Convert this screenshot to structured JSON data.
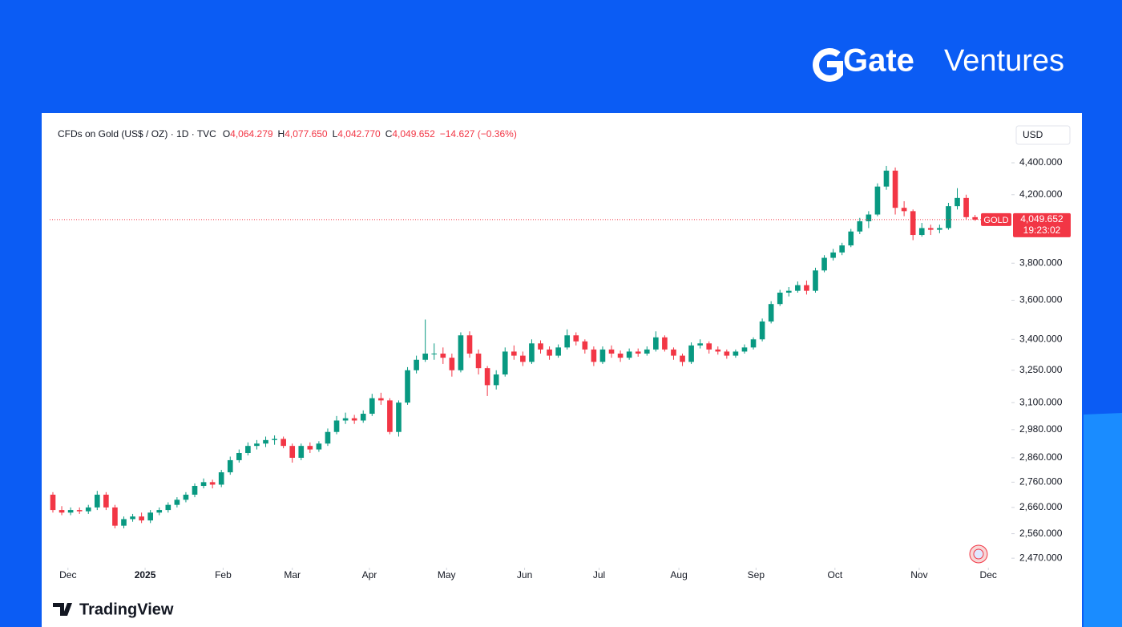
{
  "brand": "Gate",
  "brand_suffix": "Ventures",
  "footer_logo": "TradingView",
  "chart_data": {
    "type": "candlestick",
    "title": "CFDs on Gold (US$ / OZ) · 1D · TVC",
    "ohlc_labels": [
      {
        "key": "O",
        "value": "4,064.279"
      },
      {
        "key": "H",
        "value": "4,077.650"
      },
      {
        "key": "L",
        "value": "4,042.770"
      },
      {
        "key": "C",
        "value": "4,049.652"
      }
    ],
    "change_label": "−14.627 (−0.36%)",
    "currency": "USD",
    "symbol": "GOLD",
    "last_price_label": "4,049.652",
    "countdown": "19:23:02",
    "up_color": "#089981",
    "down_color": "#f23645",
    "log_scale": true,
    "ylim": [
      2436,
      4494
    ],
    "yticks": [
      {
        "value": 4400,
        "label": "4,400.000"
      },
      {
        "value": 4200,
        "label": "4,200.000"
      },
      {
        "value": 3800,
        "label": "3,800.000"
      },
      {
        "value": 3600,
        "label": "3,600.000"
      },
      {
        "value": 3400,
        "label": "3,400.000"
      },
      {
        "value": 3250,
        "label": "3,250.000"
      },
      {
        "value": 3100,
        "label": "3,100.000"
      },
      {
        "value": 2980,
        "label": "2,980.000"
      },
      {
        "value": 2860,
        "label": "2,860.000"
      },
      {
        "value": 2760,
        "label": "2,760.000"
      },
      {
        "value": 2660,
        "label": "2,660.000"
      },
      {
        "value": 2560,
        "label": "2,560.000"
      },
      {
        "value": 2470,
        "label": "2,470.000"
      }
    ],
    "xlim": [
      -0.36,
      108.1
    ],
    "xticks": [
      {
        "value": 1.7,
        "label": "Dec"
      },
      {
        "value": 10.4,
        "label": "2025"
      },
      {
        "value": 19.2,
        "label": "Feb"
      },
      {
        "value": 27,
        "label": "Mar"
      },
      {
        "value": 35.7,
        "label": "Apr"
      },
      {
        "value": 44.4,
        "label": "May"
      },
      {
        "value": 53.2,
        "label": "Jun"
      },
      {
        "value": 61.6,
        "label": "Jul"
      },
      {
        "value": 70.6,
        "label": "Aug"
      },
      {
        "value": 79.3,
        "label": "Sep"
      },
      {
        "value": 88.2,
        "label": "Oct"
      },
      {
        "value": 97.7,
        "label": "Nov"
      },
      {
        "value": 105.5,
        "label": "Dec"
      }
    ],
    "candles": [
      [
        2710,
        2720,
        2640,
        2650
      ],
      [
        2650,
        2665,
        2630,
        2640
      ],
      [
        2640,
        2660,
        2630,
        2650
      ],
      [
        2650,
        2660,
        2635,
        2645
      ],
      [
        2645,
        2670,
        2635,
        2660
      ],
      [
        2660,
        2725,
        2650,
        2710
      ],
      [
        2710,
        2720,
        2650,
        2660
      ],
      [
        2660,
        2670,
        2580,
        2590
      ],
      [
        2590,
        2625,
        2580,
        2615
      ],
      [
        2615,
        2635,
        2605,
        2625
      ],
      [
        2625,
        2640,
        2600,
        2610
      ],
      [
        2610,
        2650,
        2600,
        2640
      ],
      [
        2640,
        2660,
        2630,
        2650
      ],
      [
        2650,
        2680,
        2640,
        2670
      ],
      [
        2670,
        2700,
        2660,
        2690
      ],
      [
        2690,
        2720,
        2680,
        2710
      ],
      [
        2710,
        2755,
        2700,
        2745
      ],
      [
        2745,
        2775,
        2735,
        2760
      ],
      [
        2760,
        2770,
        2735,
        2750
      ],
      [
        2750,
        2810,
        2740,
        2800
      ],
      [
        2800,
        2865,
        2790,
        2850
      ],
      [
        2850,
        2895,
        2840,
        2880
      ],
      [
        2880,
        2925,
        2870,
        2910
      ],
      [
        2910,
        2935,
        2895,
        2920
      ],
      [
        2920,
        2950,
        2905,
        2935
      ],
      [
        2935,
        2955,
        2915,
        2940
      ],
      [
        2940,
        2950,
        2900,
        2910
      ],
      [
        2910,
        2920,
        2840,
        2860
      ],
      [
        2860,
        2920,
        2850,
        2910
      ],
      [
        2910,
        2925,
        2880,
        2895
      ],
      [
        2895,
        2930,
        2885,
        2920
      ],
      [
        2920,
        2985,
        2910,
        2970
      ],
      [
        2970,
        3040,
        2960,
        3020
      ],
      [
        3020,
        3055,
        3005,
        3030
      ],
      [
        3030,
        3045,
        3005,
        3020
      ],
      [
        3020,
        3065,
        3010,
        3050
      ],
      [
        3050,
        3140,
        3040,
        3120
      ],
      [
        3120,
        3145,
        3090,
        3110
      ],
      [
        3110,
        3120,
        2960,
        2970
      ],
      [
        2970,
        3110,
        2950,
        3100
      ],
      [
        3100,
        3265,
        3090,
        3250
      ],
      [
        3250,
        3320,
        3235,
        3300
      ],
      [
        3300,
        3500,
        3290,
        3330
      ],
      [
        3330,
        3380,
        3300,
        3330
      ],
      [
        3330,
        3360,
        3280,
        3310
      ],
      [
        3310,
        3330,
        3220,
        3250
      ],
      [
        3250,
        3435,
        3240,
        3420
      ],
      [
        3420,
        3440,
        3310,
        3330
      ],
      [
        3330,
        3350,
        3230,
        3260
      ],
      [
        3260,
        3270,
        3130,
        3180
      ],
      [
        3180,
        3250,
        3160,
        3230
      ],
      [
        3230,
        3360,
        3220,
        3340
      ],
      [
        3340,
        3370,
        3300,
        3320
      ],
      [
        3320,
        3340,
        3270,
        3290
      ],
      [
        3290,
        3400,
        3280,
        3380
      ],
      [
        3380,
        3395,
        3330,
        3350
      ],
      [
        3350,
        3365,
        3300,
        3320
      ],
      [
        3320,
        3375,
        3310,
        3360
      ],
      [
        3360,
        3450,
        3350,
        3420
      ],
      [
        3420,
        3435,
        3370,
        3390
      ],
      [
        3390,
        3400,
        3330,
        3350
      ],
      [
        3350,
        3365,
        3270,
        3290
      ],
      [
        3290,
        3365,
        3280,
        3350
      ],
      [
        3350,
        3370,
        3310,
        3330
      ],
      [
        3330,
        3345,
        3290,
        3310
      ],
      [
        3310,
        3355,
        3300,
        3340
      ],
      [
        3340,
        3355,
        3315,
        3330
      ],
      [
        3330,
        3365,
        3320,
        3350
      ],
      [
        3350,
        3440,
        3340,
        3410
      ],
      [
        3410,
        3420,
        3340,
        3350
      ],
      [
        3350,
        3360,
        3300,
        3320
      ],
      [
        3320,
        3330,
        3270,
        3290
      ],
      [
        3290,
        3385,
        3280,
        3370
      ],
      [
        3370,
        3400,
        3355,
        3380
      ],
      [
        3380,
        3390,
        3330,
        3350
      ],
      [
        3350,
        3365,
        3325,
        3340
      ],
      [
        3340,
        3350,
        3305,
        3320
      ],
      [
        3320,
        3350,
        3310,
        3340
      ],
      [
        3340,
        3375,
        3330,
        3360
      ],
      [
        3360,
        3410,
        3350,
        3400
      ],
      [
        3400,
        3505,
        3390,
        3490
      ],
      [
        3490,
        3595,
        3480,
        3580
      ],
      [
        3580,
        3655,
        3570,
        3640
      ],
      [
        3640,
        3670,
        3620,
        3650
      ],
      [
        3650,
        3700,
        3640,
        3680
      ],
      [
        3680,
        3705,
        3630,
        3650
      ],
      [
        3650,
        3775,
        3640,
        3760
      ],
      [
        3760,
        3845,
        3750,
        3830
      ],
      [
        3830,
        3880,
        3815,
        3860
      ],
      [
        3860,
        3915,
        3845,
        3900
      ],
      [
        3900,
        3995,
        3890,
        3980
      ],
      [
        3980,
        4060,
        3965,
        4040
      ],
      [
        4040,
        4100,
        4000,
        4080
      ],
      [
        4080,
        4270,
        4070,
        4250
      ],
      [
        4250,
        4380,
        4230,
        4350
      ],
      [
        4350,
        4370,
        4080,
        4120
      ],
      [
        4120,
        4160,
        4070,
        4100
      ],
      [
        4100,
        4110,
        3930,
        3960
      ],
      [
        3960,
        4030,
        3950,
        4000
      ],
      [
        4000,
        4020,
        3960,
        3990
      ],
      [
        3990,
        4020,
        3970,
        4000
      ],
      [
        4000,
        4150,
        3990,
        4130
      ],
      [
        4130,
        4240,
        4110,
        4180
      ],
      [
        4180,
        4200,
        4050,
        4064.279
      ],
      [
        4064.279,
        4077.65,
        4042.77,
        4049.652
      ]
    ]
  }
}
